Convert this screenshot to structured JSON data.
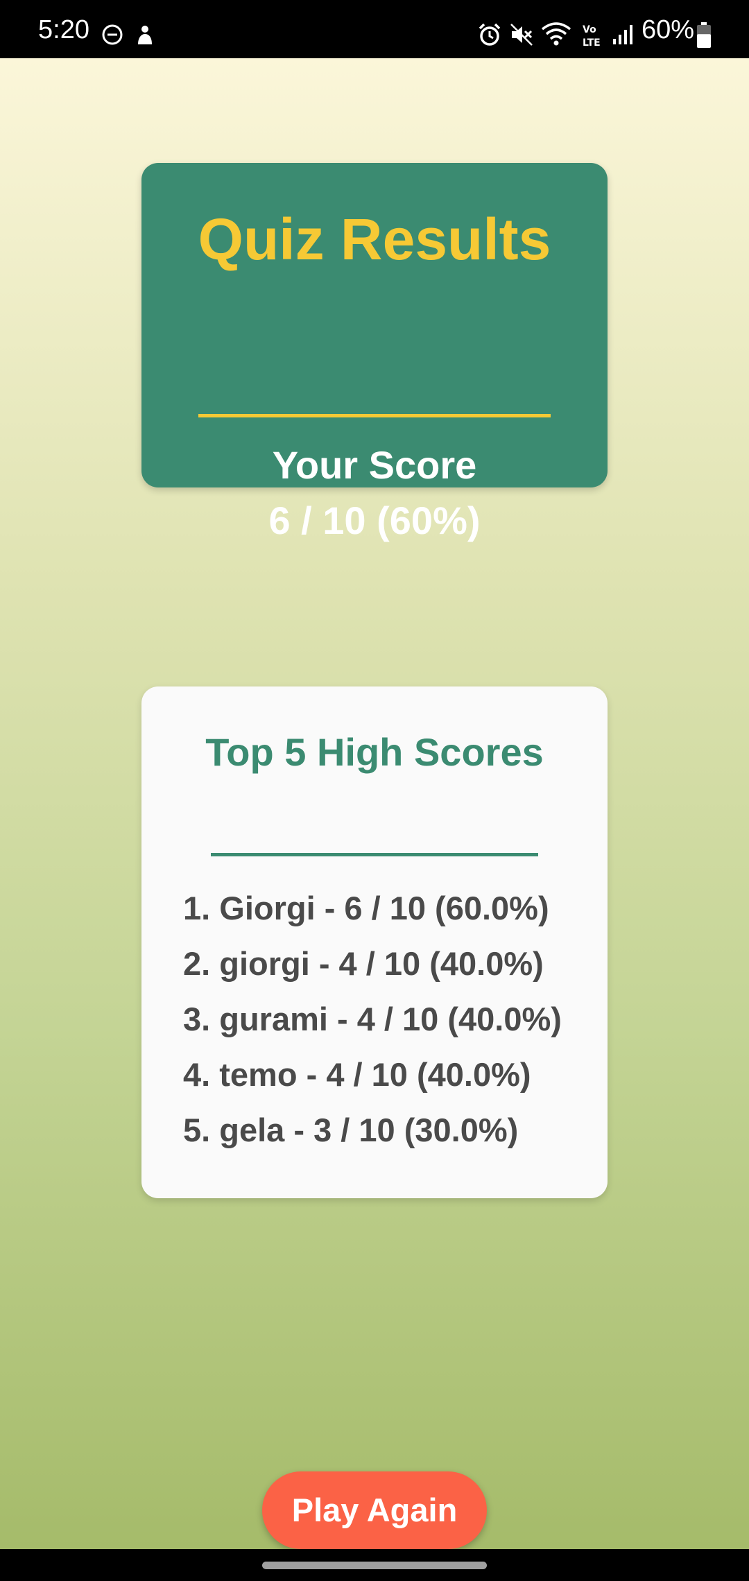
{
  "status_bar": {
    "time": "5:20",
    "battery_percent": "60%",
    "battery_level": 0.6,
    "icons": [
      "do-not-disturb-icon",
      "notification-icon",
      "alarm-icon",
      "mute-icon",
      "wifi-icon",
      "volte-icon",
      "signal-icon",
      "battery-icon"
    ]
  },
  "results": {
    "title": "Quiz Results",
    "score_label": "Your Score",
    "score_value": "6 / 10 (60%)"
  },
  "high_scores": {
    "title": "Top 5 High Scores",
    "entries": [
      "1. Giorgi - 6 / 10 (60.0%)",
      "2. giorgi - 4 / 10 (40.0%)",
      "3. gurami - 4 / 10 (40.0%)",
      "4. temo - 4 / 10 (40.0%)",
      "5. gela - 3 / 10 (30.0%)"
    ]
  },
  "actions": {
    "play_again": "Play Again"
  },
  "colors": {
    "primary_green": "#3b8b71",
    "accent_yellow": "#f6c935",
    "button_orange": "#fb6246",
    "list_text": "#4a4a4a"
  }
}
